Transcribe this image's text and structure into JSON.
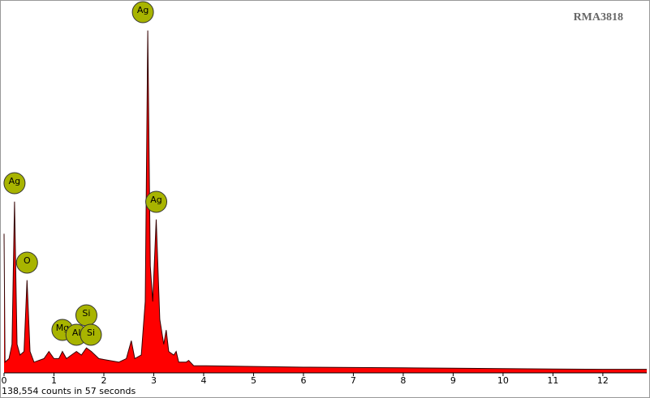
{
  "chart_data": {
    "type": "area",
    "title": "RMA3818",
    "footer": "138,554 counts in 57 seconds",
    "x": [
      0,
      0.02,
      0.1,
      0.16,
      0.21,
      0.26,
      0.32,
      0.4,
      0.46,
      0.52,
      0.6,
      0.8,
      0.9,
      1.0,
      1.1,
      1.17,
      1.25,
      1.35,
      1.45,
      1.55,
      1.65,
      1.75,
      1.9,
      2.1,
      2.3,
      2.45,
      2.55,
      2.62,
      2.75,
      2.83,
      2.88,
      2.93,
      2.98,
      3.05,
      3.12,
      3.2,
      3.25,
      3.3,
      3.4,
      3.45,
      3.5,
      3.65,
      3.7,
      3.8,
      4.0,
      5,
      6,
      7,
      8,
      9,
      10,
      11,
      12,
      12.88
    ],
    "values": [
      39,
      3,
      4,
      8,
      48,
      8,
      5,
      6,
      26,
      6,
      3,
      4,
      6,
      4,
      4,
      6,
      4,
      5,
      6,
      5,
      7,
      6,
      4,
      3.5,
      3,
      4,
      9,
      4,
      5,
      20,
      96,
      30,
      20,
      43,
      15,
      8,
      12,
      6,
      5,
      6,
      3,
      3,
      3.5,
      2,
      2,
      1.8,
      1.6,
      1.5,
      1.4,
      1.3,
      1.2,
      1.1,
      1,
      1
    ],
    "color": "#ff0000",
    "xlim": [
      0,
      12.88
    ],
    "ylim": [
      0,
      100
    ],
    "xticks": [
      0,
      1,
      2,
      3,
      4,
      5,
      6,
      7,
      8,
      9,
      10,
      11,
      12
    ],
    "markers": [
      {
        "label": "Ag",
        "x": 2.88
      },
      {
        "label": "Ag",
        "x": 0.21
      },
      {
        "label": "O",
        "x": 0.46
      },
      {
        "label": "Mg",
        "x": 1.17
      },
      {
        "label": "Si",
        "x": 1.65
      },
      {
        "label": "Al",
        "x": 1.45
      },
      {
        "label": "Si",
        "x": 1.74
      },
      {
        "label": "Ag",
        "x": 3.05
      }
    ]
  }
}
